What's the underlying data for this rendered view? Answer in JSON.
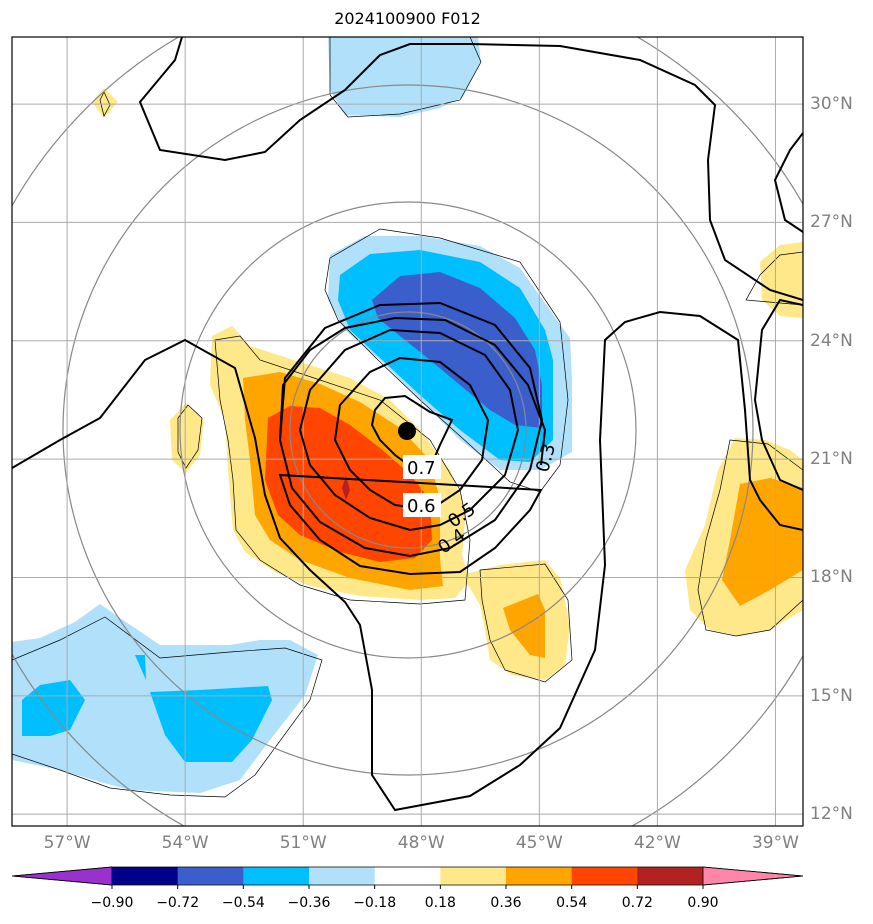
{
  "chart_data": {
    "type": "contour",
    "title": "2024100900 F012",
    "longitude_ticks": [
      "57°W",
      "54°W",
      "51°W",
      "48°W",
      "45°W",
      "42°W",
      "39°W"
    ],
    "latitude_ticks": [
      "30°N",
      "27°N",
      "24°N",
      "21°N",
      "18°N",
      "15°N",
      "12°N"
    ],
    "lon_range": [
      -58.4,
      -38.3
    ],
    "lat_range": [
      11.7,
      31.7
    ],
    "storm_center": {
      "lon": -48.4,
      "lat": 21.6
    },
    "contour_labels": [
      "0.7",
      "0.6",
      "0.5",
      "0.4",
      "0.3"
    ],
    "colorbar": {
      "boundaries": [
        "−0.90",
        "−0.72",
        "−0.54",
        "−0.36",
        "−0.18",
        "0.18",
        "0.36",
        "0.54",
        "0.72",
        "0.90"
      ],
      "colors": [
        "#9932cc",
        "#00008b",
        "#3a5fcd",
        "#00bfff",
        "#b0e0fa",
        "#ffffff",
        "#ffe88a",
        "#ffa500",
        "#ff4500",
        "#b22222",
        "#ff85aa"
      ],
      "extend": "both"
    },
    "grid": true
  }
}
